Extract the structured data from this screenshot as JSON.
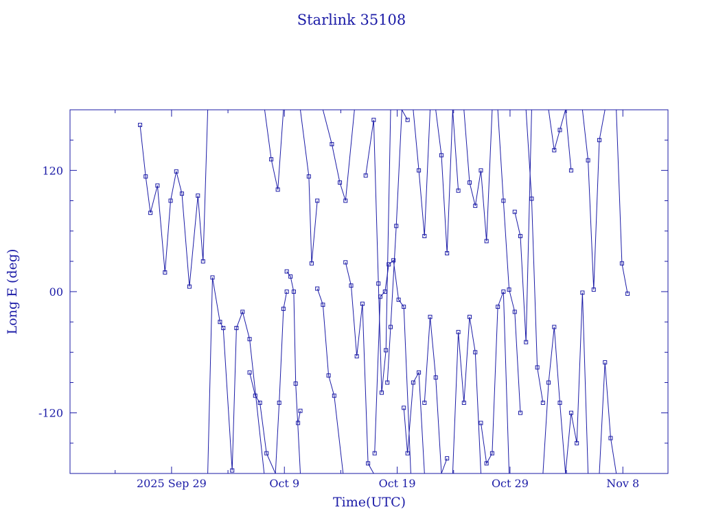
{
  "chart_data": {
    "type": "line",
    "title": "Starlink 35108",
    "xlabel": "Time(UTC)",
    "ylabel": "Long E (deg)",
    "x_unit": "date (UTC, 2025)",
    "xlim": [
      "2025-09-20T00:00",
      "2025-11-12T00:00"
    ],
    "ylim": [
      -180,
      180
    ],
    "x_tick_labels": [
      {
        "label": "2025 Sep 29",
        "x": "2025-09-29"
      },
      {
        "label": "Oct  9",
        "x": "2025-10-09"
      },
      {
        "label": "Oct 19",
        "x": "2025-10-19"
      },
      {
        "label": "Oct 29",
        "x": "2025-10-29"
      },
      {
        "label": "Nov  8",
        "x": "2025-11-08"
      }
    ],
    "x_minor_ticks": [
      "2025-09-24",
      "2025-10-04",
      "2025-10-14",
      "2025-10-24",
      "2025-11-03"
    ],
    "y_tick_labels": [
      {
        "label": "120",
        "y": 120
      },
      {
        "label": "00",
        "y": 0
      },
      {
        "label": "-120",
        "y": -120
      }
    ],
    "y_minor_ticks": [
      150,
      90,
      60,
      30,
      -30,
      -60,
      -90,
      -150
    ],
    "grid": false,
    "line_color": "#1a1aa6",
    "marker": "square",
    "series": [
      {
        "x": [
          "2025-09-26T05:00",
          "2025-09-26T17:00",
          "2025-09-27T03:00",
          "2025-09-27T18:00",
          "2025-09-28T10:00",
          "2025-09-28T22:00",
          "2025-09-29T10:00",
          "2025-09-29T22:00",
          "2025-09-30T14:00",
          "2025-10-01T08:00",
          "2025-10-01T19:00",
          "2025-10-02T05:00"
        ],
        "y": [
          165,
          114,
          78,
          105,
          19,
          90,
          119,
          97,
          5,
          95,
          30,
          180
        ]
      },
      {
        "x": [
          "2025-10-02T05:00",
          "2025-10-02T15:00",
          "2025-10-03T07:00",
          "2025-10-03T14:00",
          "2025-10-04T09:00",
          "2025-10-04T18:00",
          "2025-10-05T07:00",
          "2025-10-05T22:00",
          "2025-10-07T05:00"
        ],
        "y": [
          -180,
          14,
          -30,
          -36,
          -177,
          -36,
          -20,
          -47,
          -180
        ]
      },
      {
        "x": [
          "2025-10-05T22:00",
          "2025-10-06T10:00",
          "2025-10-06T20:00",
          "2025-10-07T10:00",
          "2025-10-08T05:00"
        ],
        "y": [
          -80,
          -103,
          -110,
          -160,
          -180
        ]
      },
      {
        "x": [
          "2025-10-07T06:00",
          "2025-10-07T20:00",
          "2025-10-08T10:00",
          "2025-10-08T22:00"
        ],
        "y": [
          180,
          131,
          101,
          180
        ]
      },
      {
        "x": [
          "2025-10-08T05:00",
          "2025-10-08T13:00",
          "2025-10-08T22:00",
          "2025-10-09T05:00"
        ],
        "y": [
          -180,
          -110,
          -17,
          0
        ]
      },
      {
        "x": [
          "2025-10-09T05:00",
          "2025-10-09T13:00",
          "2025-10-09T20:00",
          "2025-10-10T00:00",
          "2025-10-10T10:00"
        ],
        "y": [
          20,
          15,
          0,
          -91,
          -180
        ]
      },
      {
        "x": [
          "2025-10-10T05:00",
          "2025-10-10T10:00"
        ],
        "y": [
          -130,
          -118
        ]
      },
      {
        "x": [
          "2025-10-10T10:00",
          "2025-10-11T04:00",
          "2025-10-11T10:00",
          "2025-10-11T22:00"
        ],
        "y": [
          180,
          114,
          28,
          90
        ]
      },
      {
        "x": [
          "2025-10-11T22:00",
          "2025-10-12T10:00",
          "2025-10-12T22:00",
          "2025-10-13T10:00",
          "2025-10-14T05:00"
        ],
        "y": [
          3,
          -13,
          -83,
          -103,
          -180
        ]
      },
      {
        "x": [
          "2025-10-12T10:00",
          "2025-10-13T05:00",
          "2025-10-13T22:00",
          "2025-10-14T10:00",
          "2025-10-15T05:00"
        ],
        "y": [
          180,
          146,
          108,
          90,
          180
        ]
      },
      {
        "x": [
          "2025-10-14T10:00",
          "2025-10-14T22:00",
          "2025-10-15T10:00",
          "2025-10-15T22:00",
          "2025-10-16T10:00",
          "2025-10-16T22:00"
        ],
        "y": [
          29,
          6,
          -64,
          -12,
          -170,
          -180
        ]
      },
      {
        "x": [
          "2025-10-16T05:00",
          "2025-10-16T22:00",
          "2025-10-17T08:00",
          "2025-10-17T15:00",
          "2025-10-18T00:00",
          "2025-10-18T10:00"
        ],
        "y": [
          115,
          170,
          8,
          -100,
          -58,
          180
        ]
      },
      {
        "x": [
          "2025-10-17T00:00",
          "2025-10-17T12:00",
          "2025-10-17T22:00",
          "2025-10-18T06:00",
          "2025-10-18T16:00",
          "2025-10-19T03:00",
          "2025-10-19T14:00",
          "2025-10-20T05:00"
        ],
        "y": [
          -160,
          -5,
          0,
          27,
          31,
          -8,
          -15,
          -180
        ]
      },
      {
        "x": [
          "2025-10-18T03:00",
          "2025-10-18T10:00",
          "2025-10-18T22:00",
          "2025-10-19T10:00",
          "2025-10-19T22:00"
        ],
        "y": [
          -90,
          -35,
          65,
          180,
          170
        ]
      },
      {
        "x": [
          "2025-10-19T14:00",
          "2025-10-19T22:00",
          "2025-10-20T10:00",
          "2025-10-20T22:00",
          "2025-10-21T10:00"
        ],
        "y": [
          -115,
          -160,
          -90,
          -80,
          -180
        ]
      },
      {
        "x": [
          "2025-10-20T10:00",
          "2025-10-20T22:00",
          "2025-10-21T10:00",
          "2025-10-21T22:00"
        ],
        "y": [
          180,
          120,
          55,
          180
        ]
      },
      {
        "x": [
          "2025-10-21T10:00",
          "2025-10-21T22:00",
          "2025-10-22T10:00",
          "2025-10-22T22:00",
          "2025-10-23T10:00"
        ],
        "y": [
          -110,
          -25,
          -85,
          -180,
          -165
        ]
      },
      {
        "x": [
          "2025-10-22T10:00",
          "2025-10-22T22:00",
          "2025-10-23T10:00",
          "2025-10-23T22:00",
          "2025-10-24T10:00"
        ],
        "y": [
          180,
          135,
          38,
          180,
          100
        ]
      },
      {
        "x": [
          "2025-10-23T22:00",
          "2025-10-24T10:00",
          "2025-10-24T22:00",
          "2025-10-25T10:00",
          "2025-10-25T22:00",
          "2025-10-26T10:00"
        ],
        "y": [
          -180,
          -40,
          -110,
          -25,
          -60,
          -180
        ]
      },
      {
        "x": [
          "2025-10-24T22:00",
          "2025-10-25T10:00",
          "2025-10-25T22:00",
          "2025-10-26T10:00",
          "2025-10-26T22:00",
          "2025-10-27T10:00"
        ],
        "y": [
          180,
          108,
          85,
          120,
          50,
          180
        ]
      },
      {
        "x": [
          "2025-10-26T10:00",
          "2025-10-26T22:00",
          "2025-10-27T10:00",
          "2025-10-27T22:00",
          "2025-10-28T10:00",
          "2025-10-28T22:00"
        ],
        "y": [
          -130,
          -170,
          -160,
          -15,
          0,
          -180
        ]
      },
      {
        "x": [
          "2025-10-27T22:00",
          "2025-10-28T10:00",
          "2025-10-28T22:00",
          "2025-10-29T10:00",
          "2025-10-29T22:00"
        ],
        "y": [
          180,
          90,
          2,
          -20,
          -120
        ]
      },
      {
        "x": [
          "2025-10-29T10:00",
          "2025-10-29T22:00",
          "2025-10-30T10:00",
          "2025-10-30T22:00"
        ],
        "y": [
          79,
          55,
          -50,
          180
        ]
      },
      {
        "x": [
          "2025-10-30T10:00",
          "2025-10-30T22:00",
          "2025-10-31T10:00",
          "2025-10-31T22:00"
        ],
        "y": [
          180,
          92,
          -75,
          -110
        ]
      },
      {
        "x": [
          "2025-10-31T22:00",
          "2025-11-01T10:00",
          "2025-11-01T22:00",
          "2025-11-02T10:00",
          "2025-11-02T22:00"
        ],
        "y": [
          -180,
          -90,
          -35,
          -110,
          -180
        ]
      },
      {
        "x": [
          "2025-11-01T10:00",
          "2025-11-01T22:00",
          "2025-11-02T10:00",
          "2025-11-02T22:00",
          "2025-11-03T10:00"
        ],
        "y": [
          180,
          140,
          160,
          180,
          120
        ]
      },
      {
        "x": [
          "2025-11-02T22:00",
          "2025-11-03T10:00",
          "2025-11-03T22:00",
          "2025-11-04T10:00",
          "2025-11-04T22:00"
        ],
        "y": [
          -180,
          -120,
          -150,
          -1,
          -180
        ]
      },
      {
        "x": [
          "2025-11-04T10:00",
          "2025-11-04T22:00",
          "2025-11-05T10:00",
          "2025-11-05T22:00",
          "2025-11-06T10:00"
        ],
        "y": [
          180,
          130,
          2,
          150,
          180
        ]
      },
      {
        "x": [
          "2025-11-05T22:00",
          "2025-11-06T10:00",
          "2025-11-06T22:00",
          "2025-11-07T10:00"
        ],
        "y": [
          -180,
          -70,
          -145,
          -180
        ]
      },
      {
        "x": [
          "2025-11-07T10:00",
          "2025-11-07T22:00",
          "2025-11-08T10:00"
        ],
        "y": [
          180,
          28,
          -2
        ]
      }
    ]
  }
}
